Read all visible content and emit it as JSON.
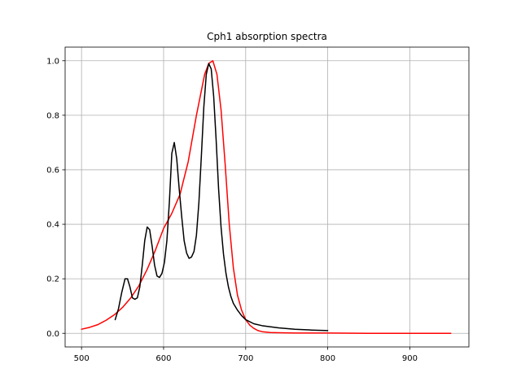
{
  "chart_data": {
    "type": "line",
    "title": "Cph1 absorption spectra",
    "xlabel": "",
    "ylabel": "",
    "xlim": [
      480,
      972
    ],
    "ylim": [
      -0.05,
      1.05
    ],
    "xticks": [
      500,
      600,
      700,
      800,
      900
    ],
    "yticks": [
      0.0,
      0.2,
      0.4,
      0.6,
      0.8,
      1.0
    ],
    "xtick_labels": [
      "500",
      "600",
      "700",
      "800",
      "900"
    ],
    "ytick_labels": [
      "0.0",
      "0.2",
      "0.4",
      "0.6",
      "0.8",
      "1.0"
    ],
    "grid": true,
    "legend": "none",
    "series": [
      {
        "color": "#ff0000",
        "x": [
          500,
          510,
          520,
          530,
          540,
          550,
          560,
          570,
          580,
          590,
          600,
          610,
          620,
          630,
          640,
          650,
          655,
          660,
          665,
          670,
          675,
          680,
          685,
          690,
          695,
          700,
          705,
          710,
          715,
          720,
          730,
          740,
          760,
          800,
          850,
          900,
          950
        ],
        "y": [
          0.015,
          0.022,
          0.032,
          0.048,
          0.068,
          0.095,
          0.13,
          0.175,
          0.235,
          0.305,
          0.385,
          0.44,
          0.51,
          0.63,
          0.8,
          0.95,
          0.99,
          1.0,
          0.95,
          0.82,
          0.62,
          0.4,
          0.24,
          0.14,
          0.085,
          0.05,
          0.03,
          0.018,
          0.01,
          0.006,
          0.003,
          0.002,
          0.001,
          0.001,
          0.0,
          0.0,
          0.0
        ]
      },
      {
        "color": "#000000",
        "x": [
          541,
          545,
          549,
          553,
          556,
          559,
          562,
          565,
          568,
          571,
          574,
          577,
          580,
          583,
          586,
          589,
          592,
          595,
          598,
          601,
          604,
          607,
          610,
          613,
          616,
          619,
          622,
          625,
          628,
          631,
          634,
          637,
          640,
          643,
          646,
          649,
          652,
          655,
          658,
          661,
          664,
          667,
          670,
          673,
          676,
          679,
          682,
          685,
          690,
          695,
          700,
          710,
          720,
          740,
          760,
          780,
          800
        ],
        "y": [
          0.05,
          0.09,
          0.15,
          0.2,
          0.2,
          0.17,
          0.13,
          0.125,
          0.13,
          0.17,
          0.25,
          0.34,
          0.39,
          0.38,
          0.32,
          0.25,
          0.21,
          0.205,
          0.22,
          0.26,
          0.34,
          0.48,
          0.66,
          0.7,
          0.64,
          0.53,
          0.43,
          0.34,
          0.295,
          0.275,
          0.28,
          0.3,
          0.36,
          0.48,
          0.65,
          0.83,
          0.95,
          0.99,
          0.97,
          0.87,
          0.71,
          0.53,
          0.39,
          0.29,
          0.22,
          0.17,
          0.135,
          0.11,
          0.085,
          0.065,
          0.05,
          0.035,
          0.028,
          0.02,
          0.015,
          0.012,
          0.01
        ]
      }
    ]
  }
}
